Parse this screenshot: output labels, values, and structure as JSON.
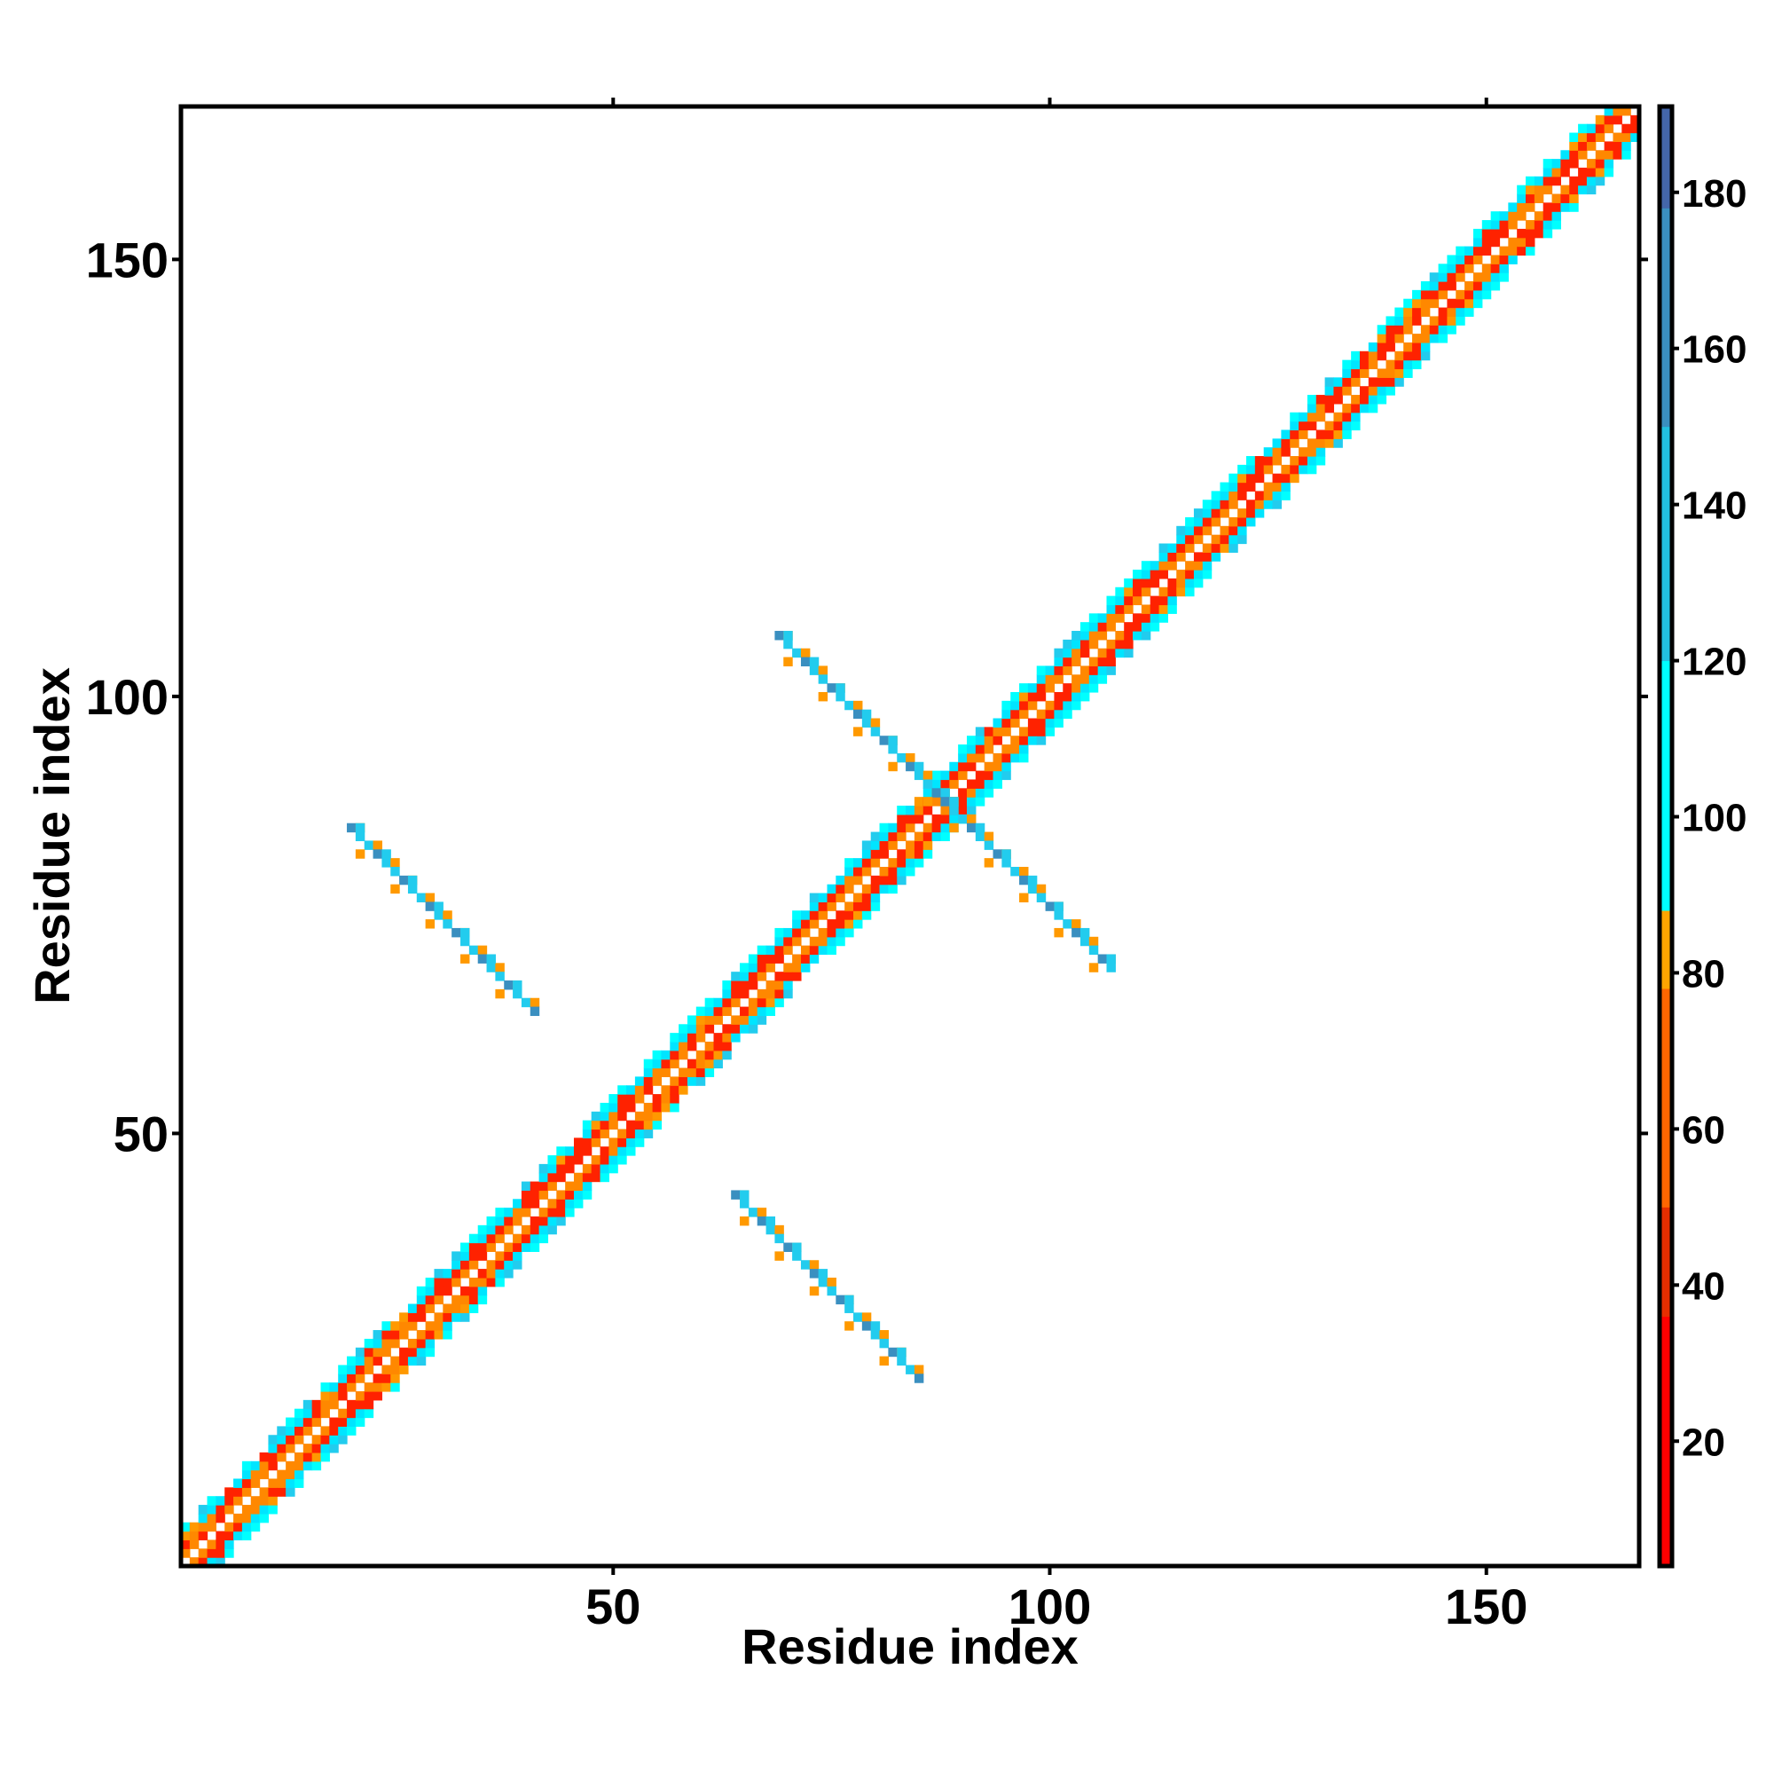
{
  "chart_data": {
    "type": "heatmap",
    "title": "",
    "xlabel": "Residue index",
    "ylabel": "Residue index",
    "xlim": [
      1,
      167
    ],
    "ylim": [
      1,
      167
    ],
    "x_ticks": [
      50,
      100,
      150
    ],
    "y_ticks": [
      50,
      100,
      150
    ],
    "x_tick_labels": [
      "50",
      "100",
      "150"
    ],
    "y_tick_labels": [
      "50",
      "100",
      "150"
    ],
    "grid": false,
    "legend": "colorbar-right",
    "colorbar": {
      "range": [
        4,
        191
      ],
      "ticks": [
        20,
        40,
        60,
        80,
        100,
        120,
        140,
        160,
        180
      ],
      "tick_labels": [
        "20",
        "40",
        "60",
        "80",
        "100",
        "120",
        "140",
        "160",
        "180"
      ],
      "stops": [
        {
          "value": 4,
          "color": "#ff0000"
        },
        {
          "value": 36,
          "color": "#e62e00"
        },
        {
          "value": 50,
          "color": "#ff6600"
        },
        {
          "value": 78,
          "color": "#ffa500"
        },
        {
          "value": 88,
          "color": "#00ffff"
        },
        {
          "value": 120,
          "color": "#22c0e0"
        },
        {
          "value": 150,
          "color": "#3a8fc0"
        },
        {
          "value": 178,
          "color": "#4466aa"
        },
        {
          "value": 191,
          "color": "#ffffff"
        }
      ]
    },
    "band_colors": {
      "diagonal": "#ffffff",
      "offset_1": "#ff8800",
      "offset_2": "#ff2200",
      "offset_3": "#00e5ff",
      "offset_4": "#00ffff",
      "contact_orange": "#ff9900",
      "contact_cyan": "#22ccee",
      "contact_blue": "#3a8fc0"
    },
    "contact_segments": [
      {
        "from": [
          20,
          85
        ],
        "to": [
          41,
          64
        ]
      },
      {
        "from": [
          64,
          43
        ],
        "to": [
          85,
          22
        ]
      },
      {
        "from": [
          69,
          107
        ],
        "to": [
          88,
          88
        ]
      },
      {
        "from": [
          88,
          88
        ],
        "to": [
          107,
          69
        ]
      }
    ]
  }
}
